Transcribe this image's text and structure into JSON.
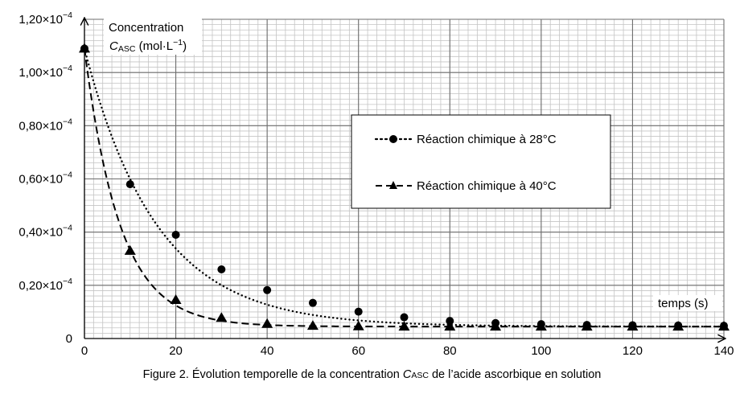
{
  "chart_data": {
    "type": "line",
    "caption": {
      "prefix": "Figure 2. Évolution temporelle de la concentration ",
      "symbol": "C",
      "subscript": "ASC",
      "suffix": " de l’acide ascorbique en solution"
    },
    "ylabel": {
      "line1": "Concentration",
      "symbol": "C",
      "subscript": "ASC",
      "unit": " (mol·L",
      "unit_exp": "−1",
      "unit_close": ")"
    },
    "xlabel": "temps (s)",
    "xlim": [
      0,
      140
    ],
    "ylim": [
      0,
      0.00012
    ],
    "x_ticks": [
      0,
      20,
      40,
      60,
      80,
      100,
      120,
      140
    ],
    "x_tick_labels": [
      "0",
      "20",
      "40",
      "60",
      "80",
      "100",
      "120",
      "140"
    ],
    "y_ticks": [
      0,
      2e-05,
      4e-05,
      6e-05,
      8e-05,
      0.0001,
      0.00012
    ],
    "y_tick_labels": [
      {
        "mantissa": "0",
        "exp": ""
      },
      {
        "mantissa": "0,20×10",
        "exp": "−4"
      },
      {
        "mantissa": "0,40×10",
        "exp": "−4"
      },
      {
        "mantissa": "0,60×10",
        "exp": "−4"
      },
      {
        "mantissa": "0,80×10",
        "exp": "−4"
      },
      {
        "mantissa": "1,00×10",
        "exp": "−4"
      },
      {
        "mantissa": "1,20×10",
        "exp": "−4"
      }
    ],
    "grid": true,
    "legend_position": "center-right",
    "series": [
      {
        "name": "Réaction chimique à 28°C",
        "marker": "circle",
        "line_style": "dotted",
        "color": "#000000",
        "x": [
          0,
          10,
          20,
          30,
          40,
          50,
          60,
          70,
          80,
          90,
          100,
          110,
          120,
          130,
          140
        ],
        "y": [
          0.000109,
          5.8e-05,
          3.9e-05,
          2.6e-05,
          1.82e-05,
          1.34e-05,
          1.01e-05,
          8e-06,
          6.6e-06,
          5.8e-06,
          5.4e-06,
          5.1e-06,
          5e-06,
          4.9e-06,
          4.8e-06
        ],
        "curve_k": 0.0635,
        "curve_inf": 4.5e-06
      },
      {
        "name": "Réaction chimique à 40°C",
        "marker": "triangle",
        "line_style": "dashed",
        "color": "#000000",
        "x": [
          0,
          10,
          20,
          30,
          40,
          50,
          60,
          70,
          80,
          90,
          100,
          110,
          120,
          130,
          140
        ],
        "y": [
          0.000109,
          3.3e-05,
          1.45e-05,
          7.8e-06,
          5.5e-06,
          4.8e-06,
          4.6e-06,
          4.5e-06,
          4.5e-06,
          4.5e-06,
          4.5e-06,
          4.5e-06,
          4.5e-06,
          4.5e-06,
          4.5e-06
        ],
        "curve_k": 0.129,
        "curve_inf": 4.5e-06
      }
    ]
  }
}
